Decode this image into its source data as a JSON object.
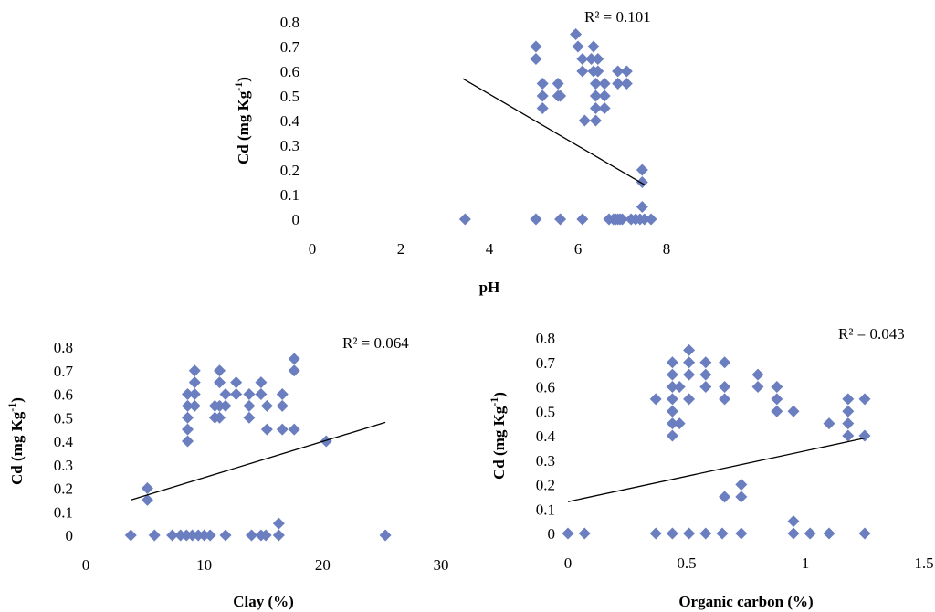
{
  "chart_data": [
    {
      "type": "scatter",
      "xlabel": "pH",
      "ylabel": "Cd (mg Kg",
      "ylabel_sup": "-1",
      "ylabel_end": ")",
      "annotation": "R² = 0.101",
      "xlim": [
        0,
        8
      ],
      "ylim": [
        0,
        0.8
      ],
      "xticks": [
        "0",
        "2",
        "4",
        "6",
        "8"
      ],
      "yticks": [
        "0",
        "0.1",
        "0.2",
        "0.3",
        "0.4",
        "0.5",
        "0.6",
        "0.7",
        "0.8"
      ],
      "marker_color": "#6B7FC0",
      "trendline": {
        "x": [
          3.4,
          7.5
        ],
        "y": [
          0.57,
          0.14
        ]
      },
      "points": [
        [
          3.45,
          0
        ],
        [
          5.05,
          0
        ],
        [
          5.6,
          0
        ],
        [
          6.1,
          0
        ],
        [
          6.7,
          0
        ],
        [
          6.8,
          0
        ],
        [
          6.85,
          0
        ],
        [
          6.9,
          0
        ],
        [
          6.95,
          0
        ],
        [
          7.0,
          0
        ],
        [
          7.2,
          0
        ],
        [
          7.3,
          0
        ],
        [
          7.4,
          0
        ],
        [
          7.5,
          0
        ],
        [
          7.65,
          0
        ],
        [
          7.45,
          0.05
        ],
        [
          7.45,
          0.15
        ],
        [
          7.45,
          0.2
        ],
        [
          5.05,
          0.7
        ],
        [
          5.05,
          0.65
        ],
        [
          5.2,
          0.55
        ],
        [
          5.2,
          0.5
        ],
        [
          5.2,
          0.45
        ],
        [
          5.55,
          0.55
        ],
        [
          5.55,
          0.5
        ],
        [
          5.6,
          0.5
        ],
        [
          5.95,
          0.75
        ],
        [
          6.0,
          0.7
        ],
        [
          6.1,
          0.65
        ],
        [
          6.1,
          0.6
        ],
        [
          6.15,
          0.4
        ],
        [
          6.3,
          0.65
        ],
        [
          6.35,
          0.7
        ],
        [
          6.35,
          0.6
        ],
        [
          6.4,
          0.55
        ],
        [
          6.4,
          0.5
        ],
        [
          6.4,
          0.45
        ],
        [
          6.4,
          0.4
        ],
        [
          6.45,
          0.65
        ],
        [
          6.45,
          0.6
        ],
        [
          6.6,
          0.55
        ],
        [
          6.6,
          0.5
        ],
        [
          6.6,
          0.45
        ],
        [
          6.9,
          0.6
        ],
        [
          6.9,
          0.55
        ],
        [
          7.1,
          0.6
        ],
        [
          7.1,
          0.55
        ]
      ]
    },
    {
      "type": "scatter",
      "xlabel": "Clay (%)",
      "ylabel": "Cd (mg Kg",
      "ylabel_sup": "-1",
      "ylabel_end": ")",
      "annotation": "R² = 0.064",
      "xlim": [
        0,
        30
      ],
      "ylim": [
        0,
        0.8
      ],
      "xticks": [
        "0",
        "10",
        "20",
        "30"
      ],
      "yticks": [
        "0",
        "0.1",
        "0.2",
        "0.3",
        "0.4",
        "0.5",
        "0.6",
        "0.7",
        "0.8"
      ],
      "marker_color": "#6B7FC0",
      "trendline": {
        "x": [
          3.8,
          25.3
        ],
        "y": [
          0.15,
          0.48
        ]
      },
      "points": [
        [
          3.8,
          0
        ],
        [
          5.8,
          0
        ],
        [
          7.3,
          0
        ],
        [
          8.0,
          0
        ],
        [
          8.5,
          0
        ],
        [
          9.0,
          0
        ],
        [
          9.5,
          0
        ],
        [
          10.0,
          0
        ],
        [
          10.5,
          0
        ],
        [
          11.8,
          0
        ],
        [
          14.0,
          0
        ],
        [
          14.8,
          0
        ],
        [
          15.2,
          0
        ],
        [
          16.3,
          0
        ],
        [
          25.3,
          0
        ],
        [
          16.3,
          0.05
        ],
        [
          5.2,
          0.15
        ],
        [
          5.2,
          0.2
        ],
        [
          20.3,
          0.4
        ],
        [
          8.6,
          0.6
        ],
        [
          8.6,
          0.55
        ],
        [
          8.6,
          0.5
        ],
        [
          8.6,
          0.45
        ],
        [
          8.6,
          0.4
        ],
        [
          9.2,
          0.7
        ],
        [
          9.2,
          0.65
        ],
        [
          9.2,
          0.6
        ],
        [
          9.2,
          0.55
        ],
        [
          10.9,
          0.55
        ],
        [
          10.9,
          0.5
        ],
        [
          11.3,
          0.7
        ],
        [
          11.3,
          0.65
        ],
        [
          11.3,
          0.55
        ],
        [
          11.3,
          0.5
        ],
        [
          11.8,
          0.6
        ],
        [
          11.8,
          0.55
        ],
        [
          12.7,
          0.65
        ],
        [
          12.7,
          0.6
        ],
        [
          13.8,
          0.6
        ],
        [
          13.8,
          0.55
        ],
        [
          13.8,
          0.5
        ],
        [
          14.8,
          0.65
        ],
        [
          14.8,
          0.6
        ],
        [
          15.3,
          0.55
        ],
        [
          15.3,
          0.45
        ],
        [
          16.6,
          0.6
        ],
        [
          16.6,
          0.55
        ],
        [
          16.6,
          0.45
        ],
        [
          17.6,
          0.75
        ],
        [
          17.6,
          0.7
        ],
        [
          17.6,
          0.45
        ]
      ]
    },
    {
      "type": "scatter",
      "xlabel": "Organic carbon (%)",
      "ylabel": "Cd (mg Kg",
      "ylabel_sup": "-1",
      "ylabel_end": ")",
      "annotation": "R² = 0.043",
      "xlim": [
        0,
        1.5
      ],
      "ylim": [
        0,
        0.8
      ],
      "xticks": [
        "0",
        "0.5",
        "1",
        "1.5"
      ],
      "yticks": [
        "0",
        "0.1",
        "0.2",
        "0.3",
        "0.4",
        "0.5",
        "0.6",
        "0.7",
        "0.8"
      ],
      "marker_color": "#6B7FC0",
      "trendline": {
        "x": [
          0,
          1.25
        ],
        "y": [
          0.13,
          0.39
        ]
      },
      "points": [
        [
          0,
          0
        ],
        [
          0.07,
          0
        ],
        [
          0.37,
          0
        ],
        [
          0.44,
          0
        ],
        [
          0.51,
          0
        ],
        [
          0.58,
          0
        ],
        [
          0.65,
          0
        ],
        [
          0.73,
          0
        ],
        [
          0.95,
          0
        ],
        [
          1.02,
          0
        ],
        [
          1.1,
          0
        ],
        [
          1.25,
          0
        ],
        [
          0.95,
          0.05
        ],
        [
          0.66,
          0.15
        ],
        [
          0.73,
          0.15
        ],
        [
          0.73,
          0.2
        ],
        [
          0.37,
          0.55
        ],
        [
          0.44,
          0.7
        ],
        [
          0.44,
          0.65
        ],
        [
          0.44,
          0.6
        ],
        [
          0.44,
          0.55
        ],
        [
          0.44,
          0.5
        ],
        [
          0.44,
          0.45
        ],
        [
          0.44,
          0.4
        ],
        [
          0.47,
          0.6
        ],
        [
          0.47,
          0.45
        ],
        [
          0.51,
          0.75
        ],
        [
          0.51,
          0.7
        ],
        [
          0.51,
          0.65
        ],
        [
          0.51,
          0.55
        ],
        [
          0.58,
          0.7
        ],
        [
          0.58,
          0.65
        ],
        [
          0.58,
          0.6
        ],
        [
          0.66,
          0.7
        ],
        [
          0.66,
          0.6
        ],
        [
          0.66,
          0.55
        ],
        [
          0.8,
          0.65
        ],
        [
          0.8,
          0.6
        ],
        [
          0.88,
          0.6
        ],
        [
          0.88,
          0.55
        ],
        [
          0.88,
          0.5
        ],
        [
          0.95,
          0.5
        ],
        [
          1.1,
          0.45
        ],
        [
          1.18,
          0.55
        ],
        [
          1.18,
          0.5
        ],
        [
          1.18,
          0.45
        ],
        [
          1.18,
          0.4
        ],
        [
          1.25,
          0.55
        ],
        [
          1.25,
          0.4
        ]
      ]
    }
  ]
}
